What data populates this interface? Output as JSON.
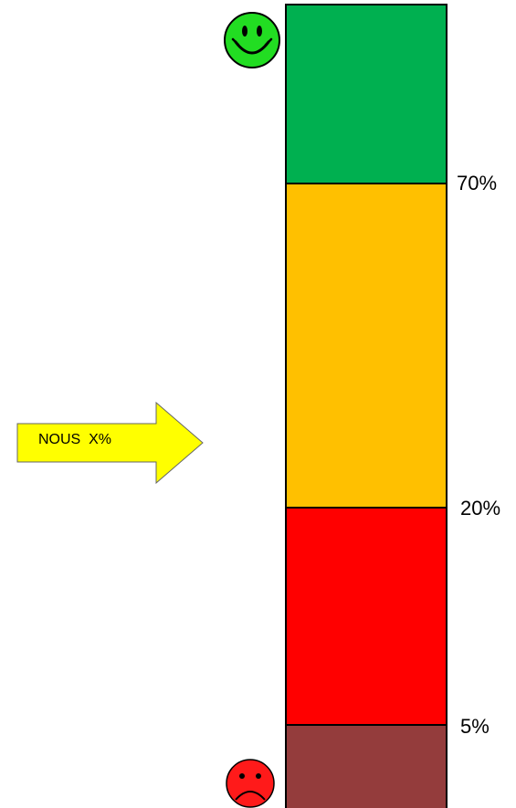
{
  "scale": {
    "bands": [
      {
        "name": "top",
        "color": "#00b050"
      },
      {
        "name": "upper-middle",
        "color": "#ffc000"
      },
      {
        "name": "lower-middle",
        "color": "#ff0000"
      },
      {
        "name": "bottom",
        "color": "#943c3c"
      }
    ],
    "thresholds": {
      "t70": "70%",
      "t20": "20%",
      "t5": "5%"
    }
  },
  "pointer": {
    "label": "NOUS  X%",
    "color": "#ffff00"
  },
  "icons": {
    "top": "happy-face-icon",
    "bottom": "sad-face-icon",
    "top_color": "#22dd22",
    "bottom_color": "#ff1a1a"
  }
}
